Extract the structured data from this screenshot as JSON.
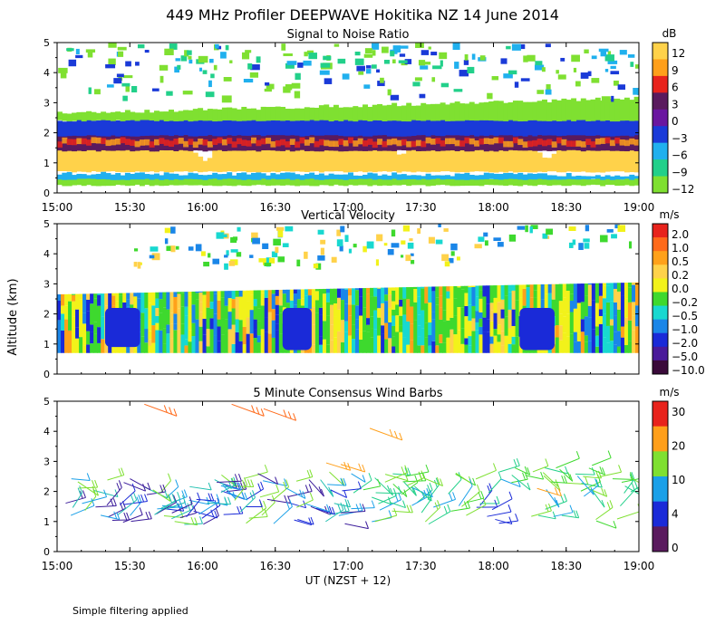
{
  "figure_title": "449 MHz Profiler DEEPWAVE Hokitika NZ 14 June 2014",
  "y_axis_label": "Altitude (km)",
  "footnote": "Simple filtering applied",
  "chart_data": [
    {
      "type": "heatmap",
      "title": "Signal to Noise Ratio",
      "colorbar_unit": "dB",
      "colorbar_ticks": [
        "12",
        "9",
        "6",
        "3",
        "0",
        "−3",
        "−6",
        "−9",
        "−12"
      ],
      "colorbar_colors": [
        "#ffd24a",
        "#ff9f1a",
        "#e8231c",
        "#5a1a5e",
        "#6a16a0",
        "#1a3ad8",
        "#20b0ee",
        "#22d08a",
        "#7fe031"
      ],
      "x_ticks": [
        "15:00",
        "15:30",
        "16:00",
        "16:30",
        "17:00",
        "17:30",
        "18:00",
        "18:30",
        "19:00"
      ],
      "y_ticks": [
        0,
        1,
        2,
        3,
        4,
        5
      ],
      "ylim": [
        0,
        5
      ],
      "xlim_hours": [
        15,
        19
      ],
      "layers_km": [
        {
          "label": "surface green",
          "color": "#7fe031",
          "bottom": 0.25,
          "top_start": 0.55,
          "top_end": 0.5
        },
        {
          "label": "cyan",
          "color": "#20b0ee",
          "bottom": 0.45,
          "top_start": 0.65,
          "top_end": 0.6
        },
        {
          "label": "yellow core",
          "color": "#ffd24a",
          "bottom": 0.7,
          "top_start": 1.6,
          "top_end": 1.65
        },
        {
          "label": "dark band",
          "color": "#5a1a5e",
          "bottom": 1.4,
          "top_start": 2.05,
          "top_end": 2.5
        },
        {
          "label": "blue band",
          "color": "#1a3ad8",
          "bottom": 1.9,
          "top_start": 2.4,
          "top_end": 2.95
        },
        {
          "label": "top edge",
          "color": "#7fe031",
          "bottom": 2.4,
          "top_start": 2.65,
          "top_end": 3.15
        }
      ]
    },
    {
      "type": "heatmap",
      "title": "Vertical Velocity",
      "colorbar_unit": "m/s",
      "colorbar_ticks": [
        "2.0",
        "1.0",
        "0.5",
        "0.2",
        "0.0",
        "−0.2",
        "−0.5",
        "−1.0",
        "−2.0",
        "−5.0",
        "−10.0"
      ],
      "colorbar_colors": [
        "#e8231c",
        "#ff6a1a",
        "#ffa11a",
        "#ffd24a",
        "#f2f21a",
        "#3ed92e",
        "#18d8d0",
        "#1a86e8",
        "#1a2ad8",
        "#4a1a9a",
        "#3a0a3a"
      ],
      "x_ticks": [
        "",
        "",
        "",
        "",
        "",
        "",
        "",
        "",
        ""
      ],
      "y_ticks": [
        0,
        1,
        2,
        3,
        4,
        5
      ],
      "ylim": [
        0,
        5
      ],
      "xlim_hours": [
        15,
        19
      ],
      "data_region_km": {
        "bottom": 0.7,
        "top_start": 2.65,
        "top_end": 3.05
      }
    },
    {
      "type": "scatter",
      "title": "5 Minute Consensus Wind Barbs",
      "colorbar_unit": "m/s",
      "colorbar_ticks": [
        "30",
        "20",
        "10",
        "4",
        "0"
      ],
      "colorbar_colors": [
        "#e8231c",
        "#ff9f1a",
        "#7fe031",
        "#1aa0e8",
        "#1a2ad8",
        "#5a1a5e"
      ],
      "x_ticks": [
        "15:00",
        "15:30",
        "16:00",
        "16:30",
        "17:00",
        "17:30",
        "18:00",
        "18:30",
        "19:00"
      ],
      "xlabel": "UT  (NZST + 12)",
      "y_ticks": [
        0,
        1,
        2,
        3,
        4,
        5
      ],
      "ylim": [
        0,
        5
      ],
      "xlim_hours": [
        15,
        19
      ],
      "high_barbs": [
        {
          "time": 15.6,
          "alt_km": 4.9,
          "speed": 20
        },
        {
          "time": 16.2,
          "alt_km": 4.9,
          "speed": 20
        },
        {
          "time": 16.42,
          "alt_km": 4.75,
          "speed": 20
        },
        {
          "time": 17.15,
          "alt_km": 4.1,
          "speed": 22
        }
      ],
      "low_layer_km": {
        "bottom": 0.9,
        "top_start": 2.5,
        "top_end": 2.9
      }
    }
  ]
}
